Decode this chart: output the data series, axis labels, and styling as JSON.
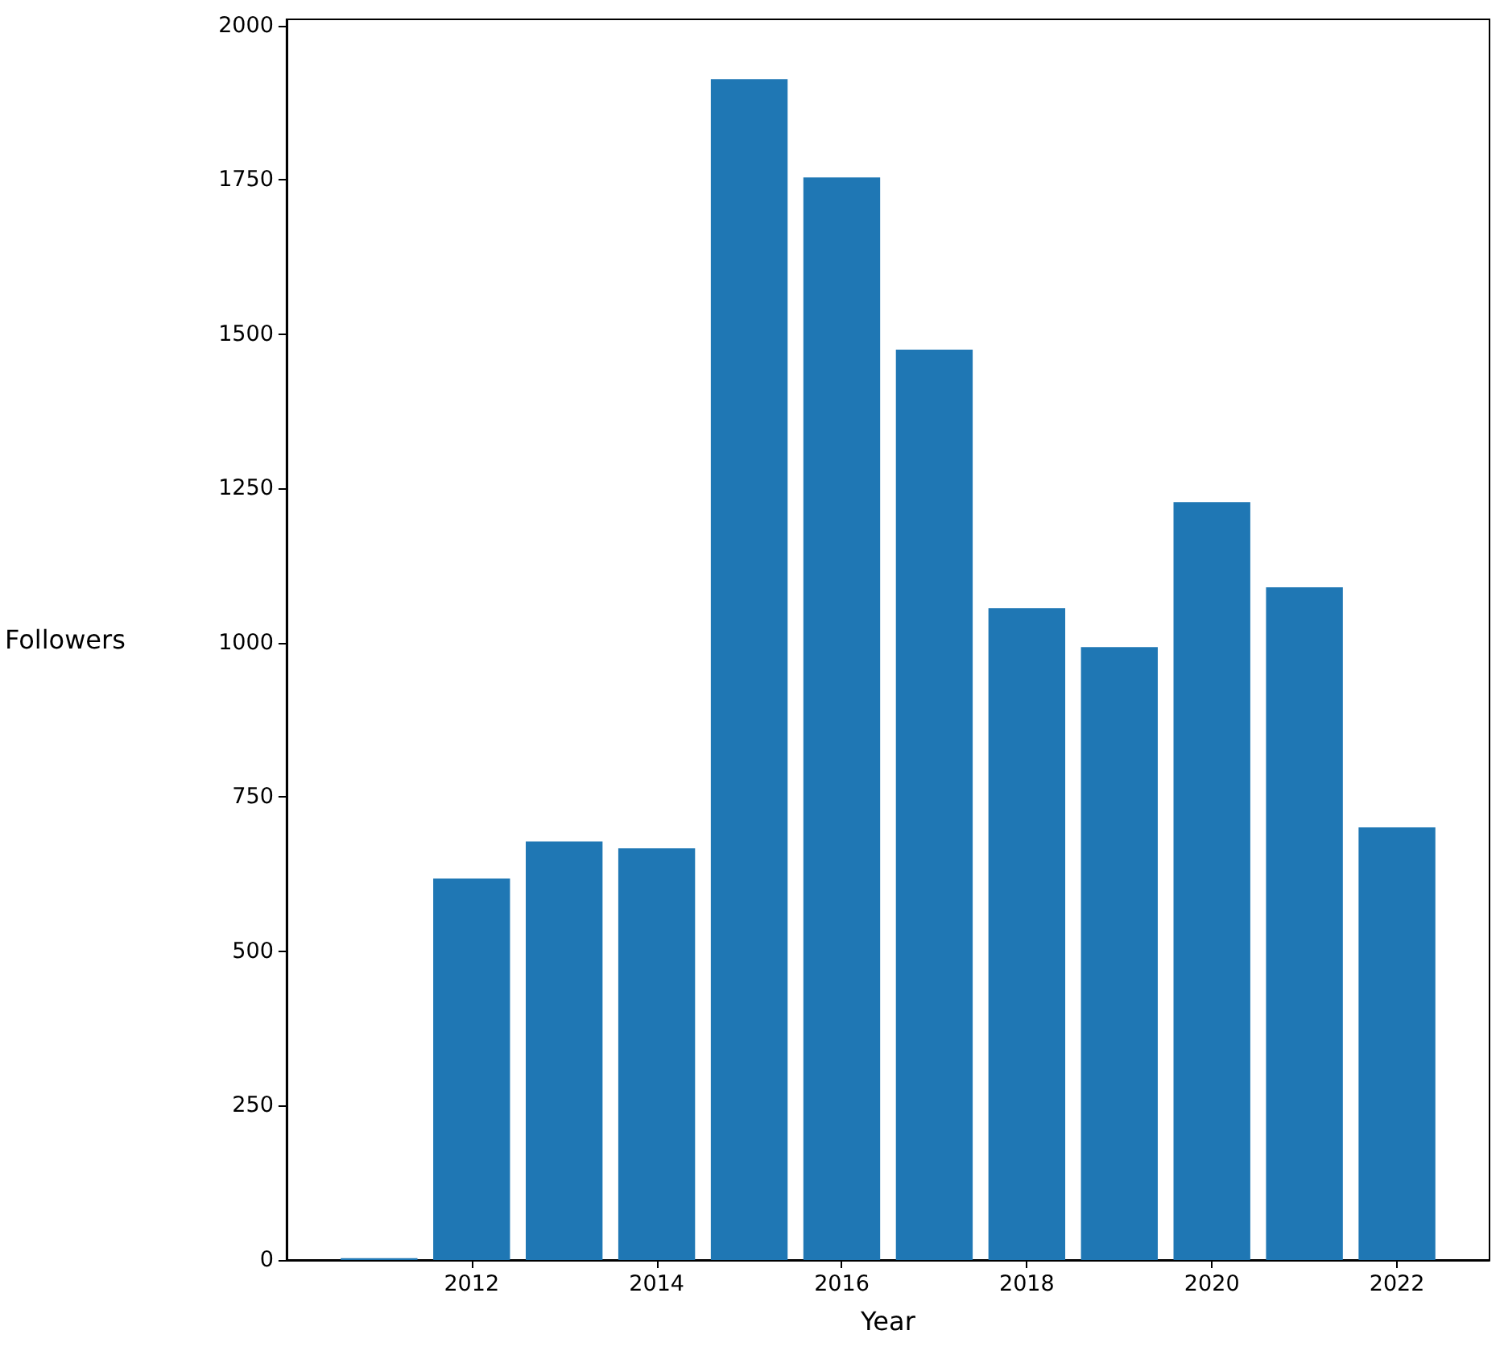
{
  "chart_data": {
    "type": "bar",
    "xlabel": "Year",
    "ylabel": "Followers",
    "x": [
      2011,
      2012,
      2013,
      2014,
      2015,
      2016,
      2017,
      2018,
      2019,
      2020,
      2021,
      2022
    ],
    "values": [
      3,
      618,
      678,
      667,
      1913,
      1754,
      1475,
      1056,
      993,
      1228,
      1090,
      701
    ],
    "color": "#1f77b4",
    "xlim": [
      2010,
      2023
    ],
    "xticks": [
      2012,
      2014,
      2016,
      2018,
      2020,
      2022
    ],
    "ylim": [
      0,
      2010
    ],
    "yticks": [
      0,
      250,
      500,
      750,
      1000,
      1250,
      1500,
      1750,
      2000
    ],
    "grid": false
  }
}
